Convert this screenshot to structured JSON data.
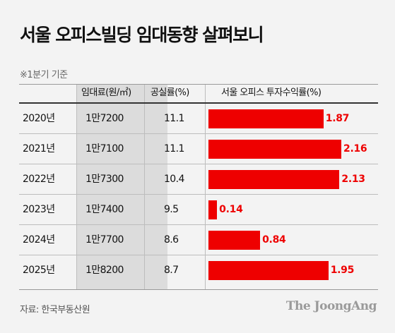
{
  "title": "서울 오피스빌딩 임대동향 살펴보니",
  "note": "※1분기 기준",
  "source": "자료: 한국부동산원",
  "logo": "The JoongAng",
  "chart_data": {
    "type": "table",
    "columns": [
      "",
      "임대료(원/㎡)",
      "공실률(%)",
      "서울 오피스 투자수익률(%)"
    ],
    "rows": [
      {
        "year": "2020년",
        "rent": "1만7200",
        "vacancy": "11.1",
        "yield": 1.87,
        "yield_label": "1.87"
      },
      {
        "year": "2021년",
        "rent": "1만7100",
        "vacancy": "11.1",
        "yield": 2.16,
        "yield_label": "2.16"
      },
      {
        "year": "2022년",
        "rent": "1만7300",
        "vacancy": "10.4",
        "yield": 2.13,
        "yield_label": "2.13"
      },
      {
        "year": "2023년",
        "rent": "1만7400",
        "vacancy": "9.5",
        "yield": 0.14,
        "yield_label": "0.14"
      },
      {
        "year": "2024년",
        "rent": "1만7700",
        "vacancy": "8.6",
        "yield": 0.84,
        "yield_label": "0.84"
      },
      {
        "year": "2025년",
        "rent": "1만8200",
        "vacancy": "8.7",
        "yield": 1.95,
        "yield_label": "1.95"
      }
    ],
    "bar_series": "yield",
    "bar_color": "#ee0000",
    "xlim": [
      0,
      2.16
    ]
  }
}
